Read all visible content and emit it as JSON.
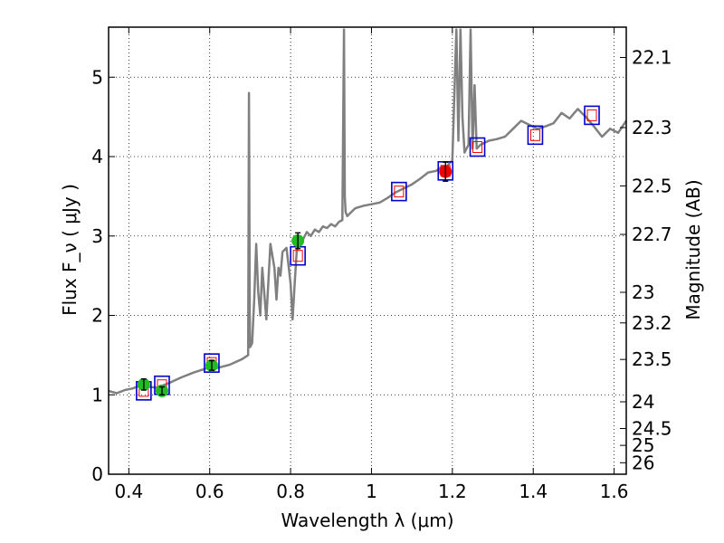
{
  "chart_data": {
    "type": "line",
    "xlabel": "Wavelength  λ (μm)",
    "ylabel": "Flux  F_ν  ( μJy )",
    "y2label": "Magnitude (AB)",
    "xlim": [
      0.35,
      1.63
    ],
    "ylim": [
      0,
      5.63
    ],
    "grid": true,
    "x_ticks": [
      "0.4",
      "0.6",
      "0.8",
      "1",
      "1.2",
      "1.4",
      "1.6"
    ],
    "x_tick_values": [
      0.4,
      0.6,
      0.8,
      1.0,
      1.2,
      1.4,
      1.6
    ],
    "y_ticks": [
      "0",
      "1",
      "2",
      "3",
      "4",
      "5"
    ],
    "y_tick_values": [
      0,
      1,
      2,
      3,
      4,
      5
    ],
    "mag_ticks": [
      "22.1",
      "22.3",
      "22.5",
      "22.7",
      "23",
      "23.2",
      "23.5",
      "24",
      "24.5",
      "25",
      "26"
    ],
    "mag_tick_values": [
      22.1,
      22.3,
      22.5,
      22.7,
      23.0,
      23.2,
      23.5,
      24.0,
      24.5,
      25.0,
      26.0
    ],
    "colors": {
      "spectrum": "#808080",
      "model_box": "#0000cc",
      "model_box_inner": "#ff0000",
      "obs_green": "#22bb22",
      "obs_red": "#ee0000"
    },
    "series": [
      {
        "kind": "spectrum",
        "x": [
          0.35,
          0.37,
          0.39,
          0.41,
          0.43,
          0.45,
          0.47,
          0.5,
          0.53,
          0.56,
          0.59,
          0.62,
          0.65,
          0.68,
          0.695,
          0.697,
          0.699,
          0.7,
          0.705,
          0.71,
          0.715,
          0.72,
          0.725,
          0.73,
          0.74,
          0.75,
          0.76,
          0.765,
          0.77,
          0.775,
          0.78,
          0.79,
          0.8,
          0.805,
          0.81,
          0.815,
          0.82,
          0.83,
          0.84,
          0.85,
          0.86,
          0.87,
          0.88,
          0.89,
          0.9,
          0.91,
          0.92,
          0.928,
          0.932,
          0.934,
          0.936,
          0.94,
          0.95,
          0.96,
          0.98,
          1.0,
          1.02,
          1.04,
          1.06,
          1.08,
          1.1,
          1.12,
          1.14,
          1.16,
          1.175,
          1.18,
          1.19,
          1.2,
          1.21,
          1.215,
          1.22,
          1.225,
          1.23,
          1.24,
          1.245,
          1.25,
          1.255,
          1.26,
          1.27,
          1.29,
          1.31,
          1.33,
          1.35,
          1.37,
          1.39,
          1.41,
          1.43,
          1.45,
          1.47,
          1.49,
          1.51,
          1.53,
          1.55,
          1.57,
          1.59,
          1.61,
          1.63
        ],
        "y": [
          1.05,
          1.02,
          1.06,
          1.08,
          1.12,
          1.1,
          1.09,
          1.15,
          1.22,
          1.28,
          1.33,
          1.34,
          1.38,
          1.45,
          1.5,
          4.8,
          2.0,
          1.6,
          1.65,
          2.2,
          2.9,
          2.3,
          2.0,
          2.6,
          1.95,
          2.9,
          2.6,
          2.2,
          2.6,
          2.5,
          2.8,
          2.85,
          2.4,
          1.95,
          2.4,
          2.8,
          2.9,
          2.95,
          3.05,
          3.0,
          3.08,
          3.05,
          3.12,
          3.1,
          3.15,
          3.12,
          3.18,
          3.2,
          5.6,
          3.5,
          3.3,
          3.25,
          3.3,
          3.35,
          3.38,
          3.4,
          3.42,
          3.48,
          3.55,
          3.6,
          3.65,
          3.72,
          3.8,
          3.82,
          3.88,
          3.75,
          3.9,
          3.95,
          5.6,
          4.2,
          5.6,
          4.5,
          4.05,
          4.15,
          5.6,
          4.1,
          4.9,
          4.1,
          4.15,
          4.2,
          4.22,
          4.25,
          4.35,
          4.45,
          4.4,
          4.35,
          4.38,
          4.42,
          4.55,
          4.48,
          4.6,
          4.5,
          4.38,
          4.25,
          4.35,
          4.3,
          4.45
        ]
      },
      {
        "kind": "model_boxes",
        "x": [
          0.437,
          0.482,
          0.605,
          0.818,
          1.068,
          1.183,
          1.262,
          1.405,
          1.545
        ],
        "y": [
          1.05,
          1.12,
          1.4,
          2.75,
          3.56,
          3.82,
          4.12,
          4.27,
          4.52
        ]
      },
      {
        "kind": "obs_green",
        "x": [
          0.437,
          0.482,
          0.605,
          0.818
        ],
        "y": [
          1.13,
          1.05,
          1.37,
          2.94
        ],
        "yerr": [
          0.07,
          0.05,
          0.06,
          0.1
        ]
      },
      {
        "kind": "obs_red",
        "x": [
          1.183
        ],
        "y": [
          3.81
        ],
        "yerr": [
          0.12
        ]
      }
    ]
  }
}
